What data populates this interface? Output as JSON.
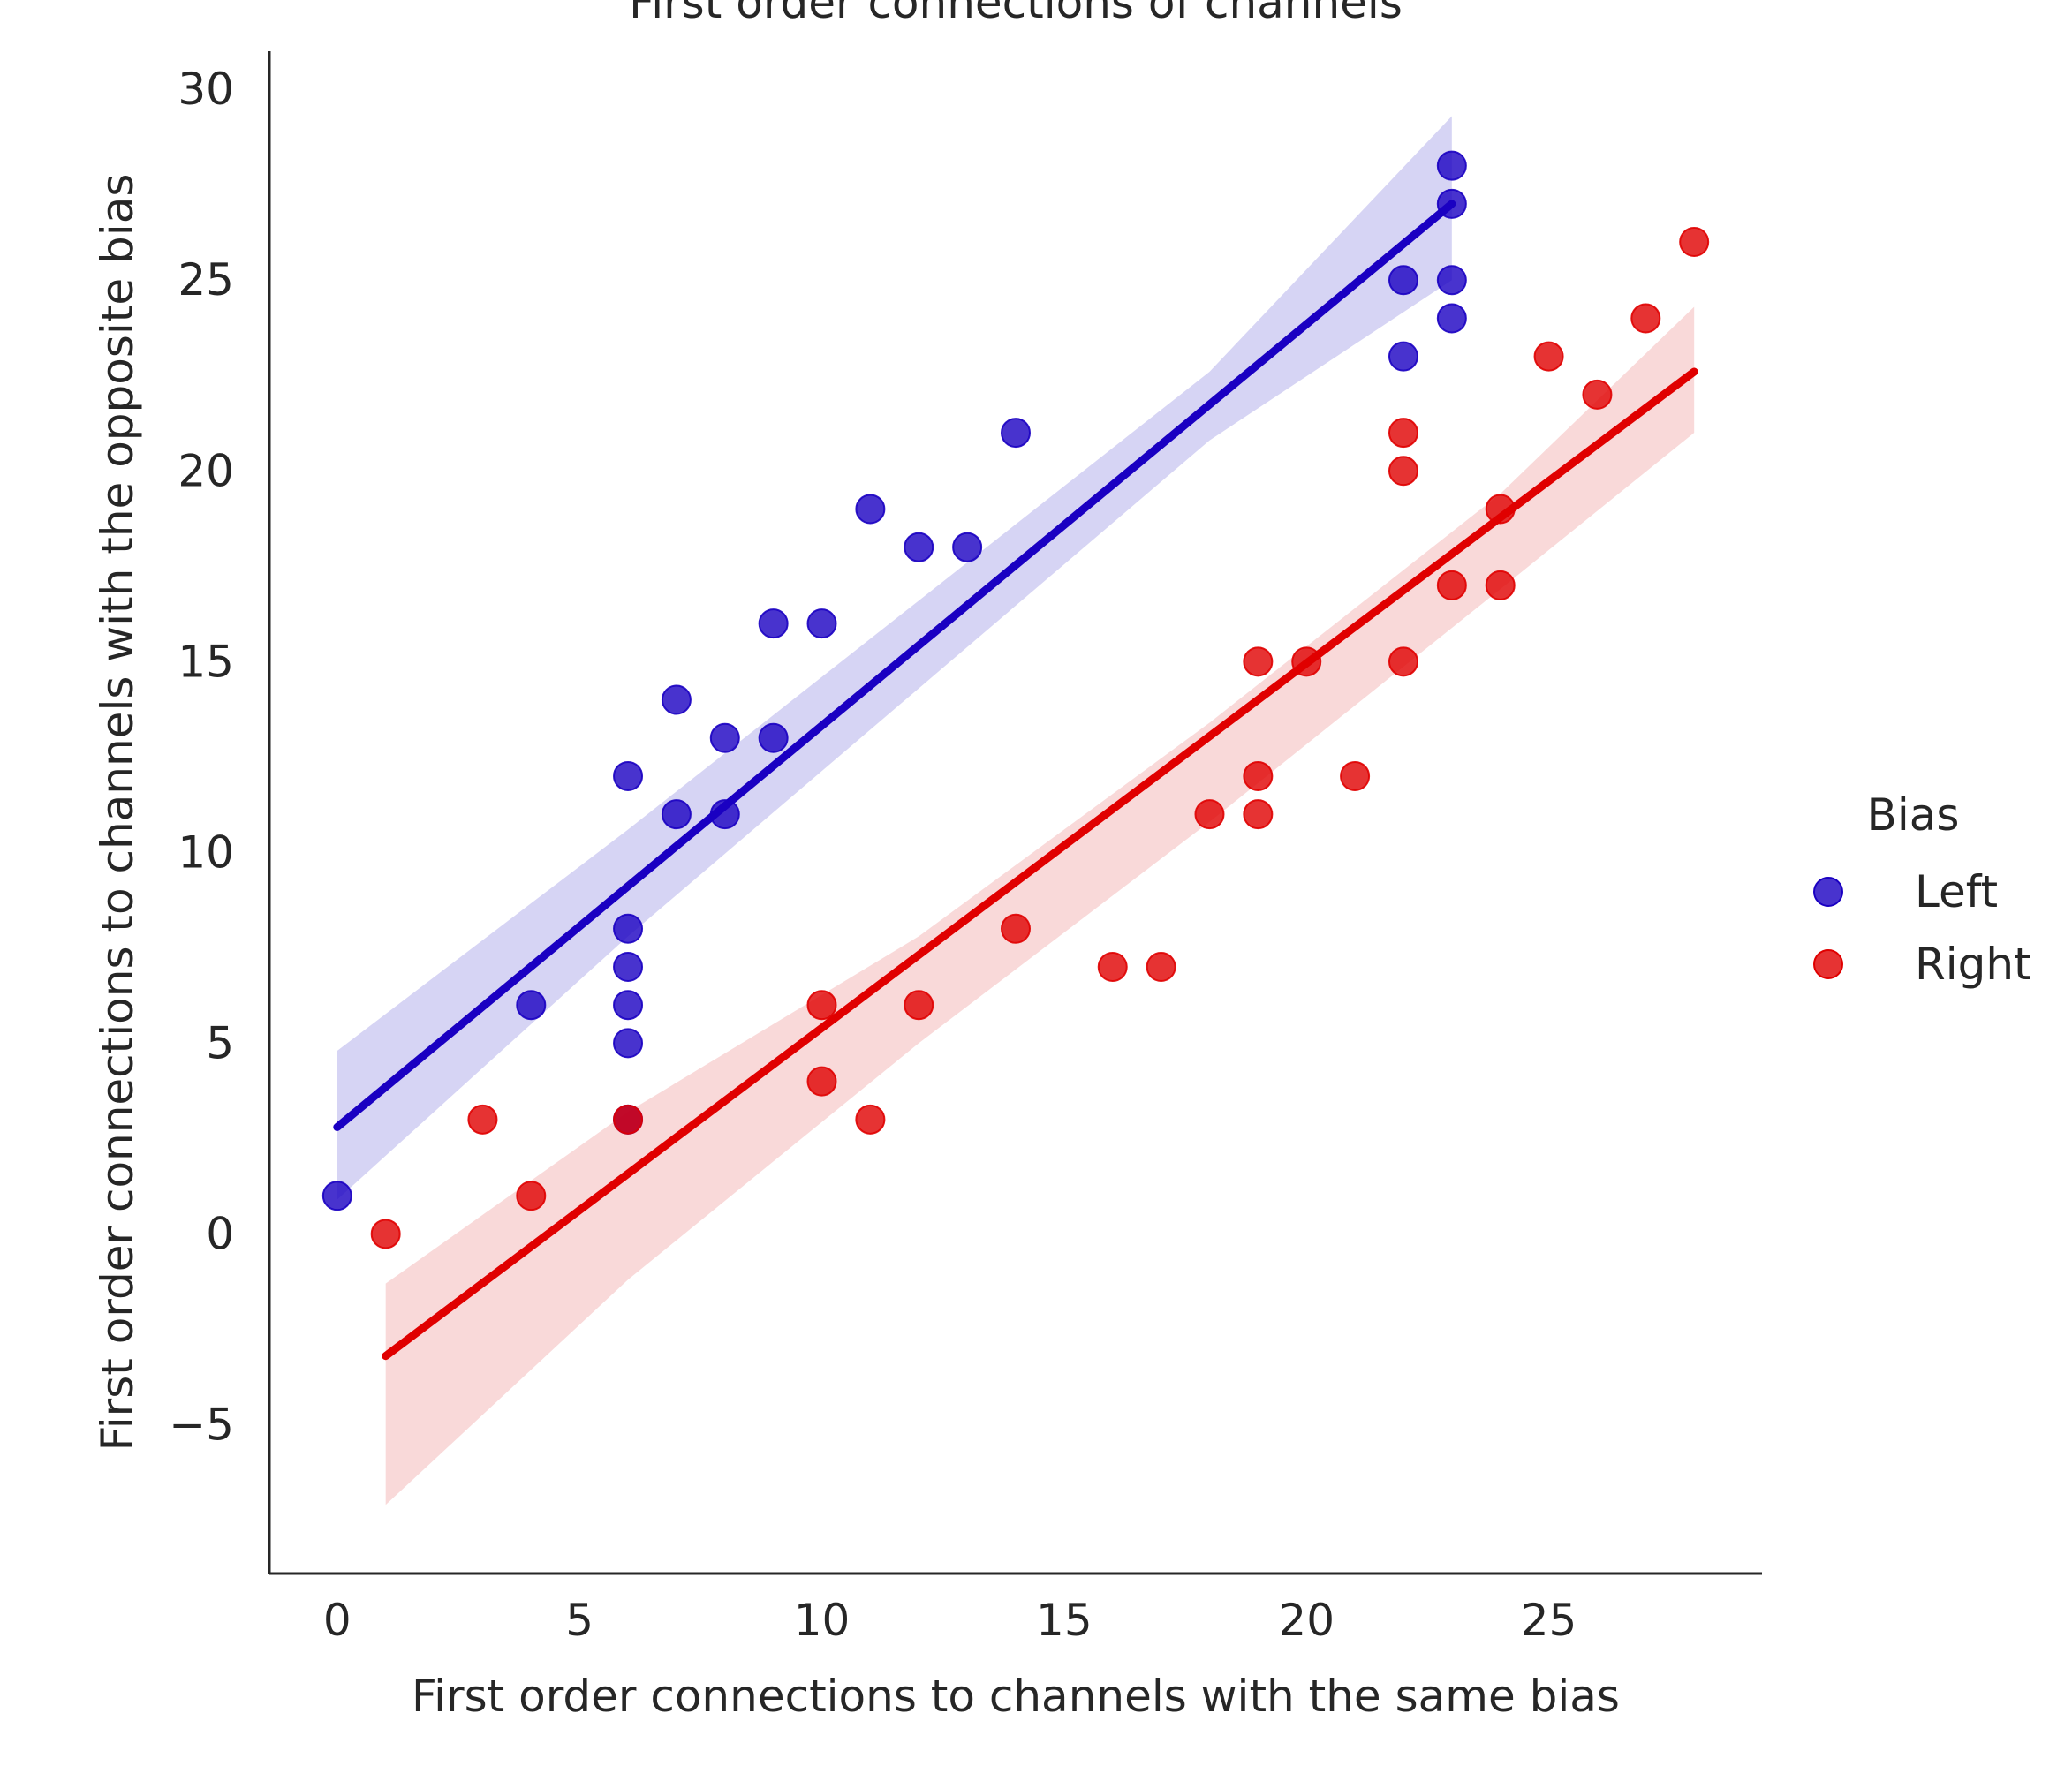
{
  "chart_data": {
    "type": "scatter",
    "title": "First order connections of channels",
    "xlabel": "First order connections to channels with the same bias",
    "ylabel": "First order connections to channels with the opposite bias",
    "xlim": [
      -1.4,
      29.4
    ],
    "ylim": [
      -8.9,
      31
    ],
    "xticks": [
      0,
      5,
      10,
      15,
      20,
      25
    ],
    "yticks": [
      -5,
      0,
      5,
      10,
      15,
      20,
      25,
      30
    ],
    "xtick_labels": [
      "0",
      "5",
      "10",
      "15",
      "20",
      "25"
    ],
    "ytick_labels": [
      "−5",
      "0",
      "5",
      "10",
      "15",
      "20",
      "25",
      "30"
    ],
    "grid": false,
    "legend": {
      "title": "Bias",
      "position": "right"
    },
    "series": [
      {
        "name": "Left",
        "color": "#1a00c2",
        "band_color": "#c8c6f0",
        "points": [
          [
            0,
            1
          ],
          [
            4,
            6
          ],
          [
            6,
            12
          ],
          [
            6,
            8
          ],
          [
            6,
            7
          ],
          [
            6,
            6
          ],
          [
            6,
            5
          ],
          [
            6,
            3
          ],
          [
            7,
            14
          ],
          [
            7,
            11
          ],
          [
            8,
            13
          ],
          [
            8,
            11
          ],
          [
            9,
            16
          ],
          [
            9,
            13
          ],
          [
            10,
            16
          ],
          [
            11,
            19
          ],
          [
            12,
            18
          ],
          [
            13,
            18
          ],
          [
            14,
            21
          ],
          [
            22,
            25
          ],
          [
            22,
            23
          ],
          [
            23,
            28
          ],
          [
            23,
            27
          ],
          [
            23,
            25
          ],
          [
            23,
            24
          ]
        ],
        "fit": {
          "x": [
            0,
            23
          ],
          "y": [
            2.8,
            27.0
          ]
        },
        "band": {
          "x": [
            0,
            6,
            12,
            18,
            23
          ],
          "lower": [
            0.9,
            7.8,
            14.3,
            20.8,
            25.0
          ],
          "upper": [
            4.8,
            10.6,
            16.6,
            22.6,
            29.3
          ]
        }
      },
      {
        "name": "Right",
        "color": "#e00000",
        "band_color": "#f7cccc",
        "points": [
          [
            1,
            0
          ],
          [
            3,
            3
          ],
          [
            4,
            1
          ],
          [
            6,
            3
          ],
          [
            10,
            6
          ],
          [
            10,
            4
          ],
          [
            11,
            3
          ],
          [
            12,
            6
          ],
          [
            14,
            8
          ],
          [
            16,
            7
          ],
          [
            17,
            7
          ],
          [
            18,
            11
          ],
          [
            19,
            15
          ],
          [
            19,
            12
          ],
          [
            19,
            11
          ],
          [
            20,
            15
          ],
          [
            21,
            12
          ],
          [
            22,
            21
          ],
          [
            22,
            20
          ],
          [
            22,
            15
          ],
          [
            23,
            17
          ],
          [
            24,
            19
          ],
          [
            24,
            17
          ],
          [
            25,
            23
          ],
          [
            26,
            22
          ],
          [
            27,
            24
          ],
          [
            28,
            26
          ]
        ],
        "fit": {
          "x": [
            1,
            28
          ],
          "y": [
            -3.2,
            22.6
          ]
        },
        "band": {
          "x": [
            1,
            6,
            12,
            18,
            24,
            28
          ],
          "lower": [
            -7.1,
            -1.2,
            5.0,
            10.8,
            16.9,
            21.0
          ],
          "upper": [
            -1.3,
            3.2,
            7.8,
            13.4,
            19.4,
            24.3
          ]
        }
      }
    ]
  }
}
